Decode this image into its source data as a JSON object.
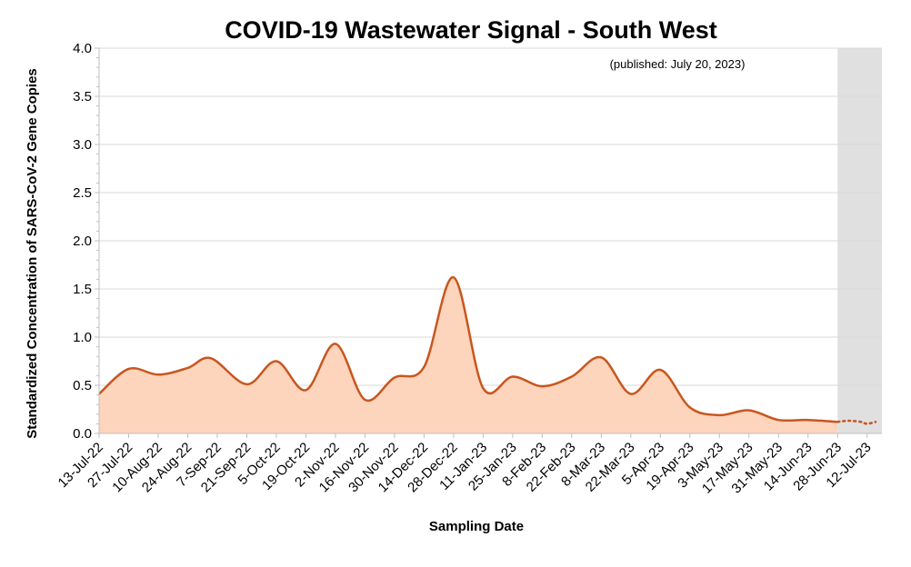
{
  "colors": {
    "line": "#C8561E",
    "fill": "#FDD4BC",
    "grid": "#D9D9D9",
    "shade": "#E0E0E0",
    "axis": "#BFBFBF"
  },
  "chart_data": {
    "type": "area",
    "title": "COVID-19 Wastewater Signal - South West",
    "annotation": "(published: July 20, 2023)",
    "xlabel": "Sampling Date",
    "ylabel": "Standardized Concentration of SARS-CoV-2 Gene Copies",
    "ylim": [
      0,
      4.0
    ],
    "yticks": [
      "0.0",
      "0.5",
      "1.0",
      "1.5",
      "2.0",
      "2.5",
      "3.0",
      "3.5",
      "4.0"
    ],
    "x_tick_labels": [
      "13-Jul-22",
      "27-Jul-22",
      "10-Aug-22",
      "24-Aug-22",
      "7-Sep-22",
      "21-Sep-22",
      "5-Oct-22",
      "19-Oct-22",
      "2-Nov-22",
      "16-Nov-22",
      "30-Nov-22",
      "14-Dec-22",
      "28-Dec-22",
      "11-Jan-23",
      "25-Jan-23",
      "8-Feb-23",
      "22-Feb-23",
      "8-Mar-23",
      "22-Mar-23",
      "5-Apr-23",
      "19-Apr-23",
      "3-May-23",
      "17-May-23",
      "31-May-23",
      "14-Jun-23",
      "28-Jun-23",
      "12-Jul-23"
    ],
    "grid": true,
    "shaded_region": {
      "from": "28-Jun-23",
      "to": "19-Jul-23"
    },
    "series": [
      {
        "style": "solid",
        "x": [
          "13-Jul-22",
          "27-Jul-22",
          "10-Aug-22",
          "24-Aug-22",
          "4-Sep-22",
          "21-Sep-22",
          "5-Oct-22",
          "19-Oct-22",
          "2-Nov-22",
          "16-Nov-22",
          "30-Nov-22",
          "14-Dec-22",
          "28-Dec-22",
          "11-Jan-23",
          "25-Jan-23",
          "8-Feb-23",
          "22-Feb-23",
          "8-Mar-23",
          "22-Mar-23",
          "5-Apr-23",
          "19-Apr-23",
          "3-May-23",
          "17-May-23",
          "31-May-23",
          "14-Jun-23",
          "28-Jun-23"
        ],
        "y": [
          0.41,
          0.67,
          0.61,
          0.68,
          0.78,
          0.51,
          0.75,
          0.45,
          0.93,
          0.35,
          0.58,
          0.69,
          1.62,
          0.47,
          0.59,
          0.49,
          0.59,
          0.79,
          0.41,
          0.66,
          0.27,
          0.19,
          0.24,
          0.14,
          0.14,
          0.12
        ]
      },
      {
        "style": "dotted",
        "x": [
          "28-Jun-23",
          "2-Jul-23",
          "5-Jul-23",
          "9-Jul-23",
          "12-Jul-23",
          "16-Jul-23"
        ],
        "y": [
          0.12,
          0.13,
          0.13,
          0.12,
          0.1,
          0.12
        ]
      }
    ]
  }
}
